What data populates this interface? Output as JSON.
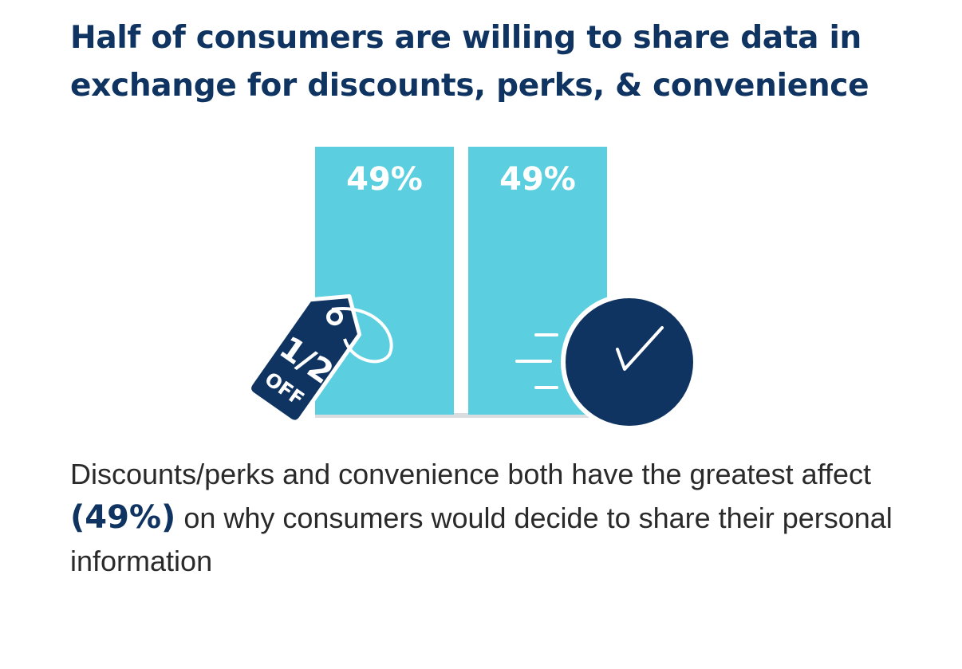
{
  "title": {
    "line1": "Half of consumers are willing to share data in",
    "line2": "exchange for discounts, perks, & convenience"
  },
  "chart_data": {
    "type": "bar",
    "categories": [
      "Discounts/perks",
      "Convenience"
    ],
    "values": [
      49,
      49
    ],
    "value_labels": [
      "49%",
      "49%"
    ],
    "ylim": [
      0,
      49
    ],
    "unit": "%",
    "grid": false,
    "colors": {
      "bar": "#5bcfe0",
      "bar_label": "#ffffff",
      "baseline": "#d9dde0"
    }
  },
  "icons": {
    "tag": {
      "name": "discount-tag-icon",
      "line1": "1/2",
      "line2": "OFF",
      "color": "#0f3461"
    },
    "check": {
      "name": "checkmark-circle-icon",
      "color": "#0f3461"
    }
  },
  "caption": {
    "part1": "Discounts/perks and convenience both have the greatest affect ",
    "highlight": "(49%)",
    "part2": " on why consumers would decide to share their personal information"
  },
  "colors": {
    "navy": "#0f3461",
    "cyan": "#5bcfe0",
    "text": "#2a2a2a"
  }
}
